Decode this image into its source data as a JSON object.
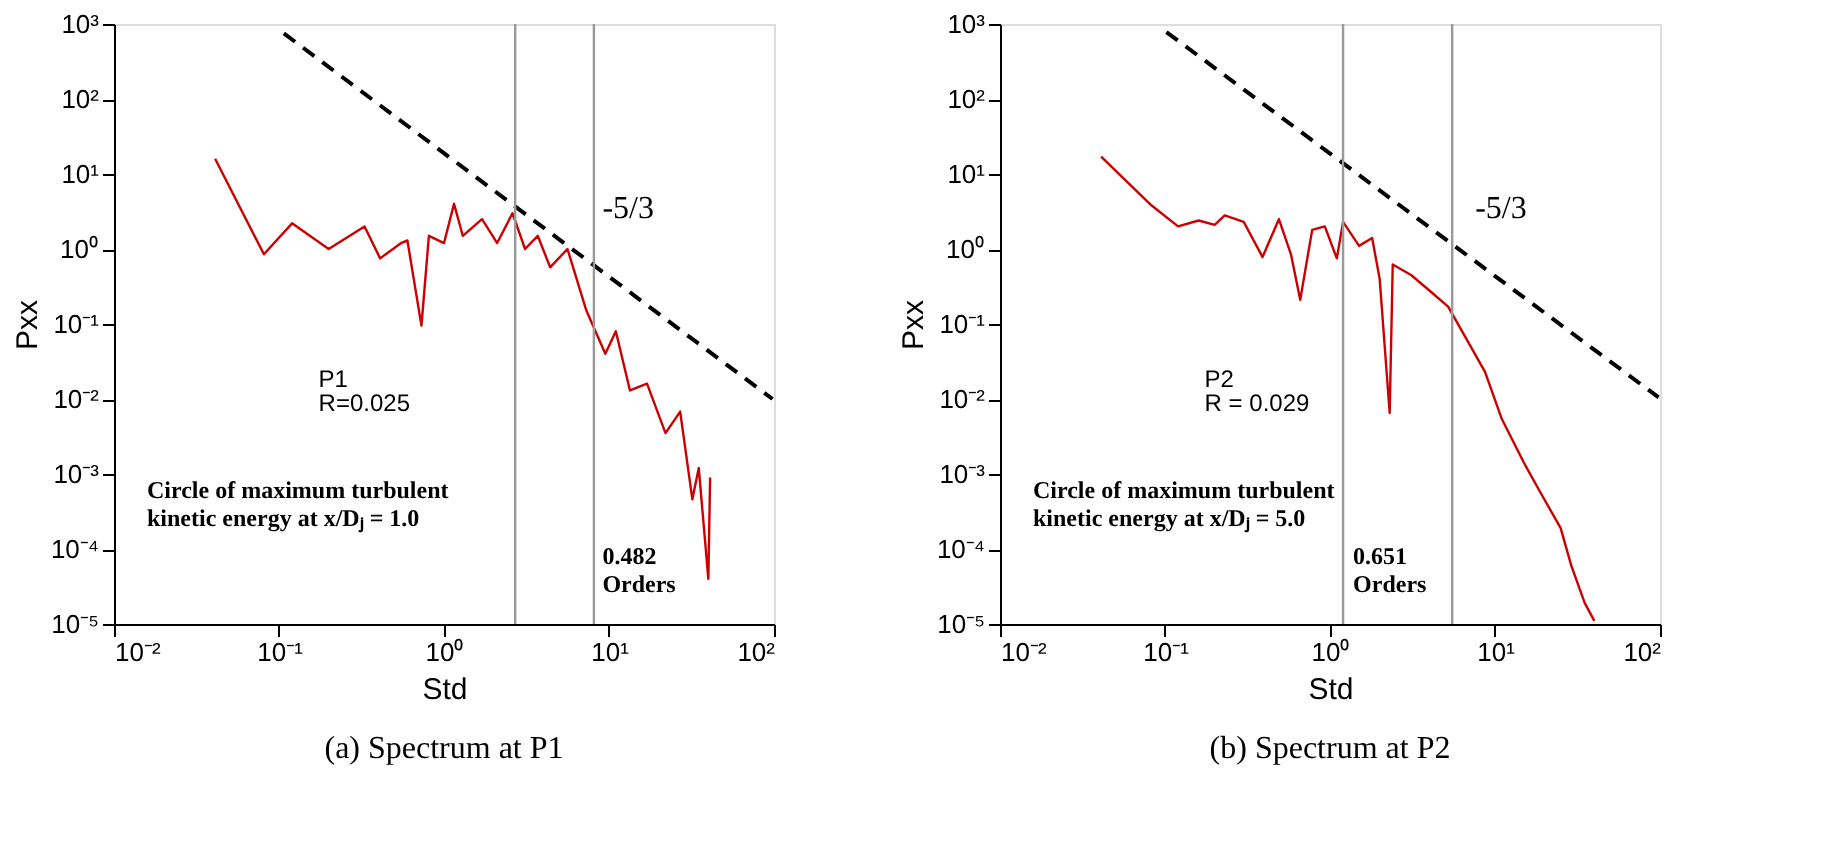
{
  "chart_data": [
    {
      "type": "line",
      "title": "(a) Spectrum at P1",
      "xlabel": "Std",
      "ylabel": "Pxx",
      "log": "xy",
      "grid": false,
      "xlim": [
        0.01,
        100
      ],
      "ylim": [
        1e-05,
        1000
      ],
      "xticks": [
        {
          "value": 0.01,
          "label": "10⁻²"
        },
        {
          "value": 0.1,
          "label": "10⁻¹"
        },
        {
          "value": 1,
          "label": "10⁰"
        },
        {
          "value": 10,
          "label": "10¹"
        },
        {
          "value": 100,
          "label": "10²"
        }
      ],
      "yticks": [
        {
          "value": 1e-05,
          "label": "10⁻⁵"
        },
        {
          "value": 0.0001,
          "label": "10⁻⁴"
        },
        {
          "value": 0.001,
          "label": "10⁻³"
        },
        {
          "value": 0.01,
          "label": "10⁻²"
        },
        {
          "value": 0.1,
          "label": "10⁻¹"
        },
        {
          "value": 1,
          "label": "10⁰"
        },
        {
          "value": 10,
          "label": "10¹"
        },
        {
          "value": 100,
          "label": "10²"
        },
        {
          "value": 1000,
          "label": "10³"
        }
      ],
      "series": [
        {
          "color": "#cc0000",
          "line_style": "solid",
          "x": [
            0.041,
            0.081,
            0.12,
            0.2,
            0.33,
            0.41,
            0.55,
            0.6,
            0.73,
            0.81,
            1.0,
            1.15,
            1.3,
            1.7,
            2.1,
            2.6,
            3.1,
            3.7,
            4.4,
            5.6,
            7.3,
            9.5,
            11,
            13.4,
            17,
            22,
            27,
            32,
            35,
            40,
            41
          ],
          "values": [
            16,
            0.85,
            2.2,
            1.0,
            2.0,
            0.75,
            1.2,
            1.3,
            0.095,
            1.5,
            1.2,
            4.0,
            1.5,
            2.5,
            1.2,
            3,
            1.0,
            1.5,
            0.57,
            1.0,
            0.15,
            0.04,
            0.08,
            0.013,
            0.016,
            0.0035,
            0.0068,
            0.00046,
            0.0012,
            4e-05,
            0.0009
          ]
        },
        {
          "color": "#000000",
          "line_style": "dashed",
          "x": [
            0.107,
            98
          ],
          "values": [
            750,
            0.01
          ]
        }
      ],
      "ref_lines": [
        {
          "axis": "x",
          "value": 2.7,
          "color": "#999999"
        },
        {
          "axis": "x",
          "value": 8.1,
          "color": "#999999"
        }
      ],
      "annotations": [
        "-5/3",
        "0.482 Orders",
        "P1",
        "R=0.025",
        "Circle of maximum turbulent kinetic energy at x/Dⱼ = 1.0"
      ]
    },
    {
      "type": "line",
      "title": "(b) Spectrum at P2",
      "xlabel": "Std",
      "ylabel": "Pxx",
      "log": "xy",
      "grid": false,
      "xlim": [
        0.01,
        100
      ],
      "ylim": [
        1e-05,
        1000
      ],
      "xticks": [
        {
          "value": 0.01,
          "label": "10⁻²"
        },
        {
          "value": 0.1,
          "label": "10⁻¹"
        },
        {
          "value": 1,
          "label": "10⁰"
        },
        {
          "value": 10,
          "label": "10¹"
        },
        {
          "value": 100,
          "label": "10²"
        }
      ],
      "yticks": [
        {
          "value": 1e-05,
          "label": "10⁻⁵"
        },
        {
          "value": 0.0001,
          "label": "10⁻⁴"
        },
        {
          "value": 0.001,
          "label": "10⁻³"
        },
        {
          "value": 0.01,
          "label": "10⁻²"
        },
        {
          "value": 0.1,
          "label": "10⁻¹"
        },
        {
          "value": 1,
          "label": "10⁰"
        },
        {
          "value": 10,
          "label": "10¹"
        },
        {
          "value": 100,
          "label": "10²"
        },
        {
          "value": 1000,
          "label": "10³"
        }
      ],
      "series": [
        {
          "color": "#cc0000",
          "line_style": "solid",
          "x": [
            0.041,
            0.083,
            0.12,
            0.16,
            0.2,
            0.23,
            0.3,
            0.39,
            0.49,
            0.58,
            0.66,
            0.78,
            0.93,
            1.1,
            1.2,
            1.5,
            1.8,
            2.0,
            2.3,
            2.4,
            3.1,
            4.0,
            5.2,
            6.8,
            8.7,
            11,
            15,
            19,
            25,
            29,
            35,
            40
          ],
          "values": [
            17,
            3.8,
            2.0,
            2.4,
            2.1,
            2.8,
            2.3,
            0.78,
            2.5,
            0.85,
            0.21,
            1.8,
            2.0,
            0.75,
            2.3,
            1.1,
            1.4,
            0.4,
            0.0065,
            0.62,
            0.45,
            0.28,
            0.17,
            0.06,
            0.023,
            0.0054,
            0.0014,
            0.00055,
            0.00019,
            6e-05,
            1.9e-05,
            1.1e-05
          ]
        },
        {
          "color": "#000000",
          "line_style": "dashed",
          "x": [
            0.102,
            98
          ],
          "values": [
            780,
            0.0105
          ]
        }
      ],
      "ref_lines": [
        {
          "axis": "x",
          "value": 1.2,
          "color": "#999999"
        },
        {
          "axis": "x",
          "value": 5.5,
          "color": "#999999"
        }
      ],
      "annotations": [
        "-5/3",
        "0.651 Orders",
        "P2",
        "R = 0.029",
        "Circle of maximum turbulent kinetic energy at x/Dⱼ = 5.0"
      ]
    }
  ]
}
